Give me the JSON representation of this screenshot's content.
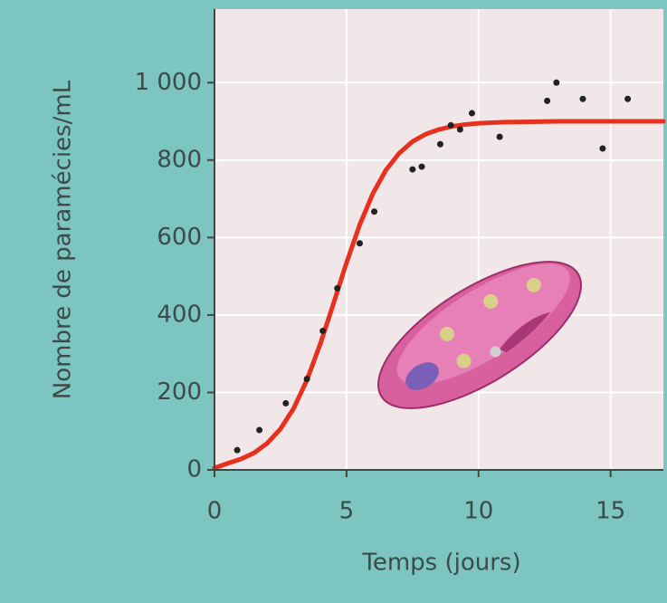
{
  "chart_data": {
    "type": "scatter",
    "xlabel": "Temps (jours)",
    "ylabel": "Nombre de paramécies/mL",
    "xlim": [
      0,
      17
    ],
    "ylim": [
      0,
      1190
    ],
    "xticks": [
      0,
      5,
      10,
      15
    ],
    "yticks": [
      0,
      200,
      400,
      600,
      800,
      {
        "value": 1000,
        "label": "1 000"
      }
    ],
    "grid": true,
    "series": [
      {
        "type": "scatter",
        "color": "#222222",
        "x": [
          0.86,
          1.7,
          2.7,
          3.5,
          4.1,
          4.65,
          5.5,
          6.05,
          7.5,
          7.85,
          8.55,
          8.95,
          9.3,
          9.75,
          10.8,
          12.6,
          12.95,
          13.95,
          14.7,
          15.65
        ],
        "values": [
          51,
          103,
          172,
          235,
          359,
          469,
          585,
          667,
          776,
          783,
          841,
          890,
          879,
          921,
          860,
          953,
          1000,
          958,
          830,
          958
        ]
      },
      {
        "type": "line",
        "color": "#e8301e",
        "x": [
          0,
          0.5,
          1,
          1.5,
          2,
          2.5,
          3,
          3.5,
          4,
          4.5,
          5,
          5.5,
          6,
          6.5,
          7,
          7.5,
          8,
          8.5,
          9,
          9.5,
          10,
          11,
          12,
          13,
          14,
          15,
          16,
          17
        ],
        "values": [
          5,
          17,
          28,
          44,
          69,
          106,
          159,
          232,
          324,
          428,
          535,
          633,
          714,
          775,
          818,
          848,
          867,
          879,
          887,
          892,
          895,
          898,
          899,
          900,
          900,
          900,
          900,
          900
        ]
      }
    ]
  }
}
